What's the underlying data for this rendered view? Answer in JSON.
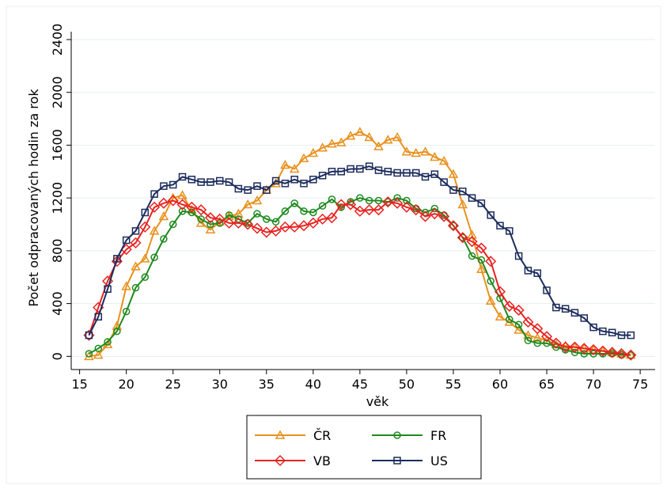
{
  "chart_data": {
    "type": "line",
    "xlabel": "věk",
    "ylabel": "Počet odpracovaných hodin za rok",
    "x": [
      16,
      17,
      18,
      19,
      20,
      21,
      22,
      23,
      24,
      25,
      26,
      27,
      28,
      29,
      30,
      31,
      32,
      33,
      34,
      35,
      36,
      37,
      38,
      39,
      40,
      41,
      42,
      43,
      44,
      45,
      46,
      47,
      48,
      49,
      50,
      51,
      52,
      53,
      54,
      55,
      56,
      57,
      58,
      59,
      60,
      61,
      62,
      63,
      64,
      65,
      66,
      67,
      68,
      69,
      70,
      71,
      72,
      73,
      74
    ],
    "xlim": [
      14.1,
      76.6
    ],
    "xticks": [
      15,
      20,
      25,
      30,
      35,
      40,
      45,
      50,
      55,
      60,
      65,
      70,
      75
    ],
    "ylim": [
      -100,
      2460
    ],
    "yticks": [
      0,
      400,
      800,
      1200,
      1600,
      2000,
      2400
    ],
    "grid": true,
    "series": [
      {
        "name": "ČR",
        "color": "#e8911e",
        "marker": "triangle",
        "values": [
          0,
          10,
          90,
          230,
          530,
          680,
          740,
          950,
          1060,
          1200,
          1220,
          1110,
          1010,
          960,
          1020,
          1060,
          1080,
          1150,
          1180,
          1260,
          1310,
          1450,
          1420,
          1500,
          1540,
          1580,
          1610,
          1620,
          1670,
          1700,
          1660,
          1590,
          1640,
          1660,
          1550,
          1540,
          1550,
          1510,
          1480,
          1380,
          1150,
          920,
          660,
          420,
          300,
          260,
          200,
          160,
          140,
          120,
          90,
          80,
          70,
          60,
          50,
          40,
          30,
          20,
          10
        ]
      },
      {
        "name": "FR",
        "color": "#1f8a1f",
        "marker": "circle",
        "values": [
          20,
          60,
          110,
          190,
          340,
          520,
          600,
          750,
          890,
          1000,
          1100,
          1090,
          1040,
          1000,
          1010,
          1070,
          1040,
          1010,
          1080,
          1040,
          1020,
          1100,
          1160,
          1100,
          1090,
          1140,
          1190,
          1130,
          1170,
          1200,
          1180,
          1180,
          1170,
          1200,
          1180,
          1120,
          1090,
          1120,
          1070,
          990,
          900,
          760,
          730,
          570,
          440,
          280,
          240,
          120,
          100,
          100,
          70,
          50,
          30,
          20,
          20,
          20,
          20,
          10,
          10
        ]
      },
      {
        "name": "VB",
        "color": "#e8221f",
        "marker": "diamond",
        "values": [
          160,
          370,
          570,
          720,
          810,
          860,
          980,
          1130,
          1160,
          1180,
          1150,
          1130,
          1110,
          1050,
          1040,
          1010,
          1010,
          1000,
          970,
          940,
          950,
          980,
          980,
          990,
          1010,
          1040,
          1050,
          1150,
          1150,
          1100,
          1110,
          1110,
          1170,
          1160,
          1130,
          1110,
          1060,
          1080,
          1060,
          990,
          900,
          870,
          820,
          720,
          490,
          380,
          350,
          260,
          210,
          150,
          100,
          70,
          70,
          60,
          50,
          40,
          30,
          20,
          10
        ]
      },
      {
        "name": "US",
        "color": "#1c2c5c",
        "marker": "square",
        "values": [
          160,
          300,
          510,
          740,
          880,
          950,
          1090,
          1230,
          1290,
          1300,
          1360,
          1340,
          1320,
          1320,
          1330,
          1320,
          1270,
          1260,
          1290,
          1260,
          1330,
          1310,
          1340,
          1310,
          1340,
          1370,
          1400,
          1400,
          1420,
          1420,
          1440,
          1410,
          1400,
          1390,
          1390,
          1390,
          1360,
          1380,
          1320,
          1260,
          1250,
          1200,
          1160,
          1070,
          990,
          950,
          760,
          650,
          630,
          500,
          370,
          360,
          330,
          290,
          220,
          190,
          180,
          160,
          160
        ]
      }
    ]
  }
}
